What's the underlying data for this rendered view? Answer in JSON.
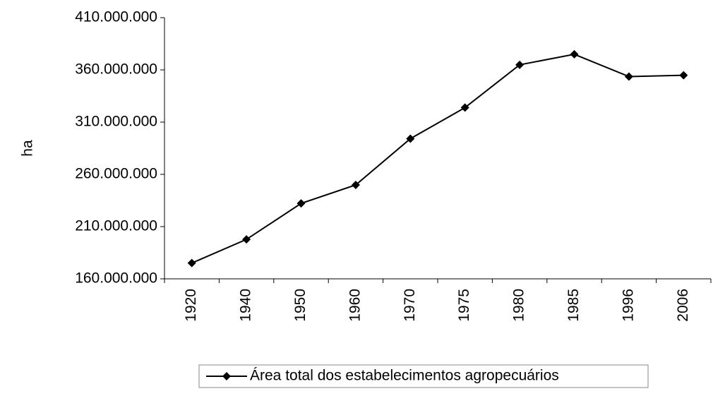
{
  "chart_data": {
    "type": "line",
    "y_label": "ha",
    "categories": [
      "1920",
      "1940",
      "1950",
      "1960",
      "1970",
      "1975",
      "1980",
      "1985",
      "1996",
      "2006"
    ],
    "series": [
      {
        "name": "Área total dos estabelecimentos agropecuários",
        "color": "#000000",
        "values": [
          175104675,
          197720247,
          232211106,
          249862142,
          294145466,
          323896082,
          364854421,
          374924929,
          353611246,
          354865534
        ]
      }
    ],
    "ylim": [
      160000000,
      410000000
    ],
    "yticks": [
      {
        "value": 160000000,
        "label": "160.000.000"
      },
      {
        "value": 210000000,
        "label": "210.000.000"
      },
      {
        "value": 260000000,
        "label": "260.000.000"
      },
      {
        "value": 310000000,
        "label": "310.000.000"
      },
      {
        "value": 360000000,
        "label": "360.000.000"
      },
      {
        "value": 410000000,
        "label": "410.000.000"
      }
    ],
    "grid": false,
    "legend": "bottom"
  }
}
